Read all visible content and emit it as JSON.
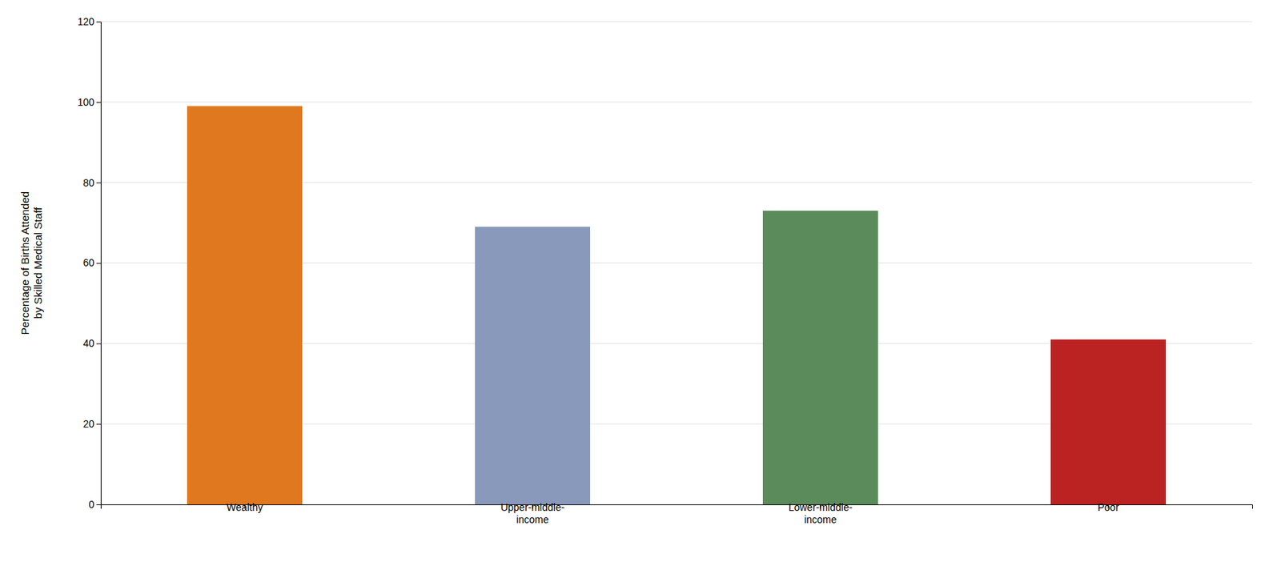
{
  "chart_data": {
    "type": "bar",
    "categories": [
      "Wealthy",
      "Upper-middle-\nincome",
      "Lower-middle-\nincome",
      "Poor"
    ],
    "values": [
      99,
      69,
      73,
      41
    ],
    "colors": [
      "#E07820",
      "#8899BB",
      "#5B8B5B",
      "#BB2222"
    ],
    "ylabel": "Percentage of Births Attended\nby Skilled Medical Staff",
    "ylim": [
      0,
      120
    ],
    "yticks": [
      0,
      20,
      40,
      60,
      80,
      100,
      120
    ],
    "grid": true
  }
}
